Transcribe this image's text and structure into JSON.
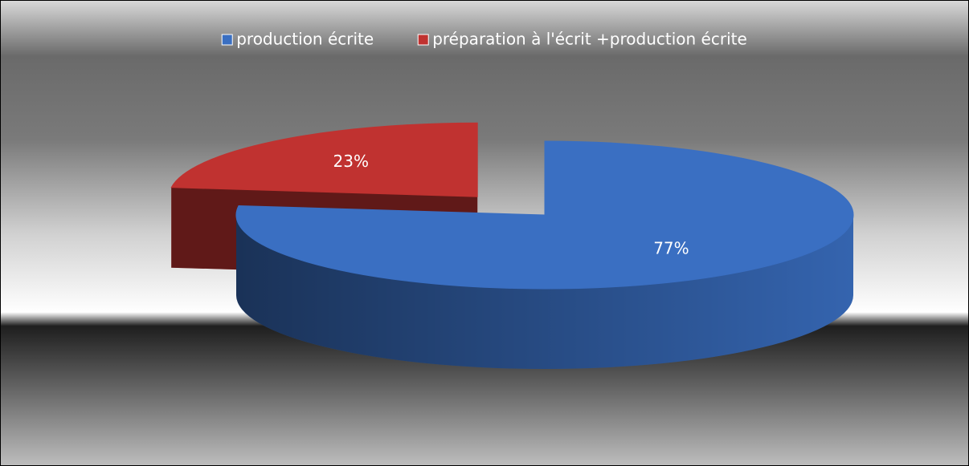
{
  "chart_data": {
    "type": "pie3d",
    "categories": [
      "production écrite",
      "préparation à l'écrit +production écrite"
    ],
    "values": [
      77,
      23
    ],
    "value_labels": [
      "77%",
      "23%"
    ],
    "colors": [
      "#3a6fc2",
      "#c03230"
    ],
    "legend": "top"
  }
}
